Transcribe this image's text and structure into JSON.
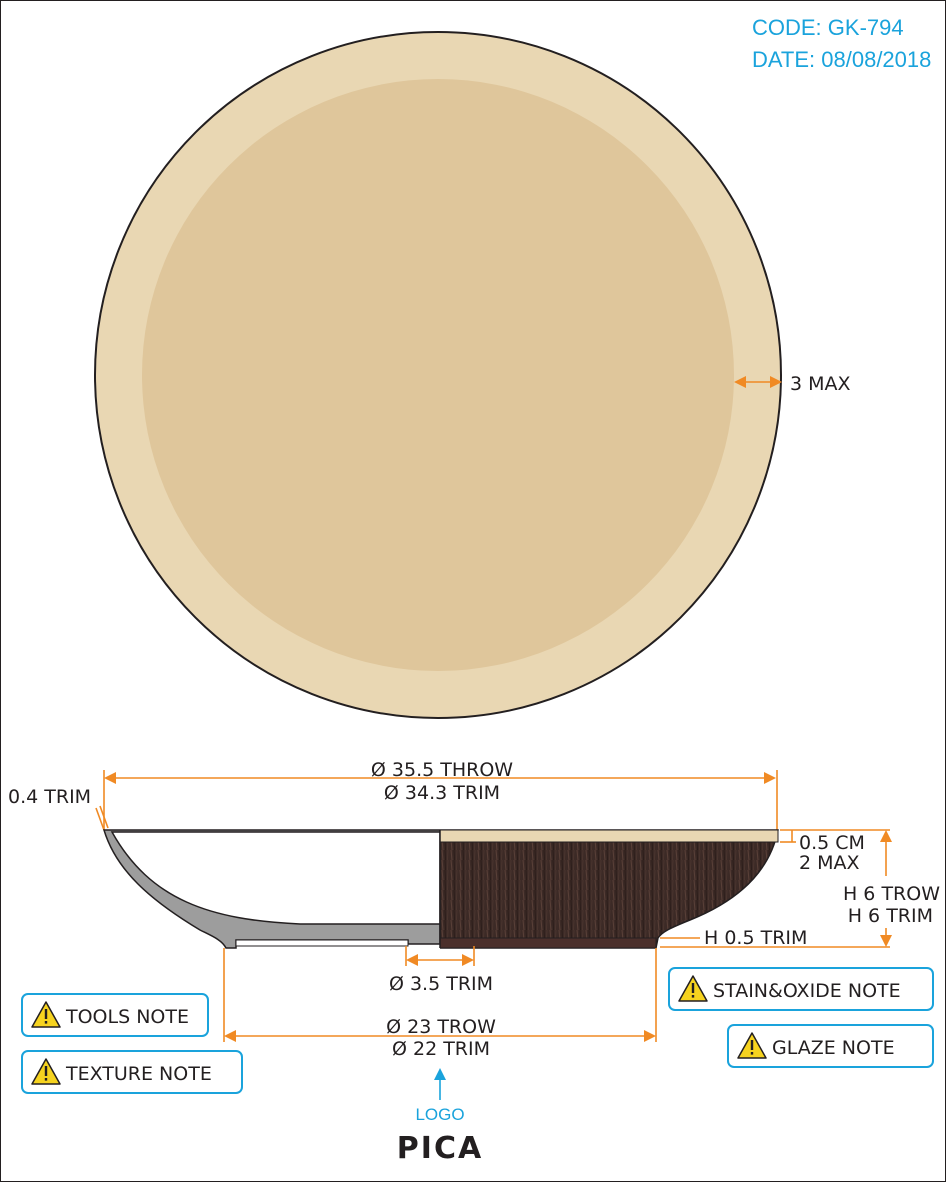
{
  "header": {
    "code": "CODE: GK-794",
    "date": "DATE: 08/08/2018"
  },
  "colors": {
    "rim": "#e9d7b3",
    "well": "#dfc69b",
    "outline": "#231f20",
    "dimension": "#f08a24",
    "accent": "#1aa3dc",
    "exterior_glaze": "#3c2a26",
    "section_grey": "#9d9d9d"
  },
  "top_view": {
    "rim_width_label": "3 MAX"
  },
  "side_view": {
    "diameter_throw": "Ø 35.5 THROW",
    "diameter_trim": "Ø 34.3 TRIM",
    "lip_trim": "0.4 TRIM",
    "lip_band_cm": "0.5 CM",
    "lip_band_max": "2 MAX",
    "height_throw": "H 6 TROW",
    "height_trim": "H 6 TRIM",
    "foot_height": "H 0.5 TRIM",
    "center_trim": "Ø 3.5 TRIM",
    "foot_throw": "Ø 23 TROW",
    "foot_trim": "Ø 22 TRIM"
  },
  "notes": {
    "tools": {
      "label": "TOOLS NOTE",
      "icon": "warning-icon"
    },
    "texture": {
      "label": "TEXTURE NOTE",
      "icon": "warning-icon"
    },
    "stain_oxide": {
      "label": "STAIN&OXIDE NOTE",
      "icon": "warning-icon"
    },
    "glaze": {
      "label": "GLAZE NOTE",
      "icon": "warning-icon"
    }
  },
  "logo": {
    "caption": "LOGO",
    "name": "PICA"
  }
}
